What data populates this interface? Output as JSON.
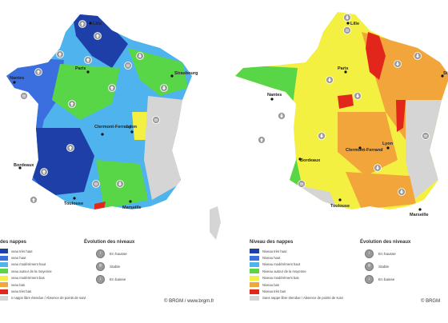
{
  "legend": {
    "levels_title_left": "des nappes",
    "levels_title_right": "Niveau des nappes",
    "levels_left": [
      {
        "label": "veau très haut",
        "color": "#1f3fa8"
      },
      {
        "label": "veau haut",
        "color": "#3b6fe0"
      },
      {
        "label": "veau modérément haut",
        "color": "#4fb4ee"
      },
      {
        "label": "veau autour de la moyenne",
        "color": "#59d647"
      },
      {
        "label": "veau modérément bas",
        "color": "#f3f041"
      },
      {
        "label": "veau bas",
        "color": "#f2a53b"
      },
      {
        "label": "veau très bas",
        "color": "#e3261c"
      },
      {
        "label": "s nappe libre étendue / Absence de points de suivi",
        "color": "#d5d5d5"
      }
    ],
    "levels_right": [
      {
        "label": "Niveau très haut",
        "color": "#1f3fa8"
      },
      {
        "label": "Niveau haut",
        "color": "#3b6fe0"
      },
      {
        "label": "Niveau modérément haut",
        "color": "#4fb4ee"
      },
      {
        "label": "Niveau autour de la moyenne",
        "color": "#59d647"
      },
      {
        "label": "Niveau modérément bas",
        "color": "#f3f041"
      },
      {
        "label": "Niveau bas",
        "color": "#f2a53b"
      },
      {
        "label": "Niveau très bas",
        "color": "#e3261c"
      },
      {
        "label": "Sans nappe libre étendue / Absence de points de suivi",
        "color": "#d5d5d5"
      }
    ],
    "evolution_title": "Évolution des niveaux",
    "evolution": [
      {
        "label": "En hausse",
        "icon": "arrow-up-icon",
        "glyph": "↑"
      },
      {
        "label": "Stable",
        "icon": "equals-icon",
        "glyph": "="
      },
      {
        "label": "En baisse",
        "icon": "arrow-down-icon",
        "glyph": "↓"
      }
    ]
  },
  "credit_left": "© BRGM / www.brgm.fr",
  "credit_right": "© BRGM",
  "cities": {
    "lille": "Lille",
    "paris": "Paris",
    "strasbourg": "Strasbourg",
    "nantes": "Nantes",
    "clermont": "Clermont-Ferrand",
    "lyon": "Lyon",
    "bordeaux": "Bordeaux",
    "toulouse": "Toulouse",
    "marseille": "Marseille",
    "strasbourg_cut": "St"
  },
  "colors": {
    "very_high": "#1f3fa8",
    "high": "#3b6fe0",
    "mod_high": "#4fb4ee",
    "average": "#59d647",
    "mod_low": "#f3f041",
    "low": "#f2a53b",
    "very_low": "#e3261c",
    "none": "#d5d5d5",
    "icon": "#9a9a9a"
  }
}
